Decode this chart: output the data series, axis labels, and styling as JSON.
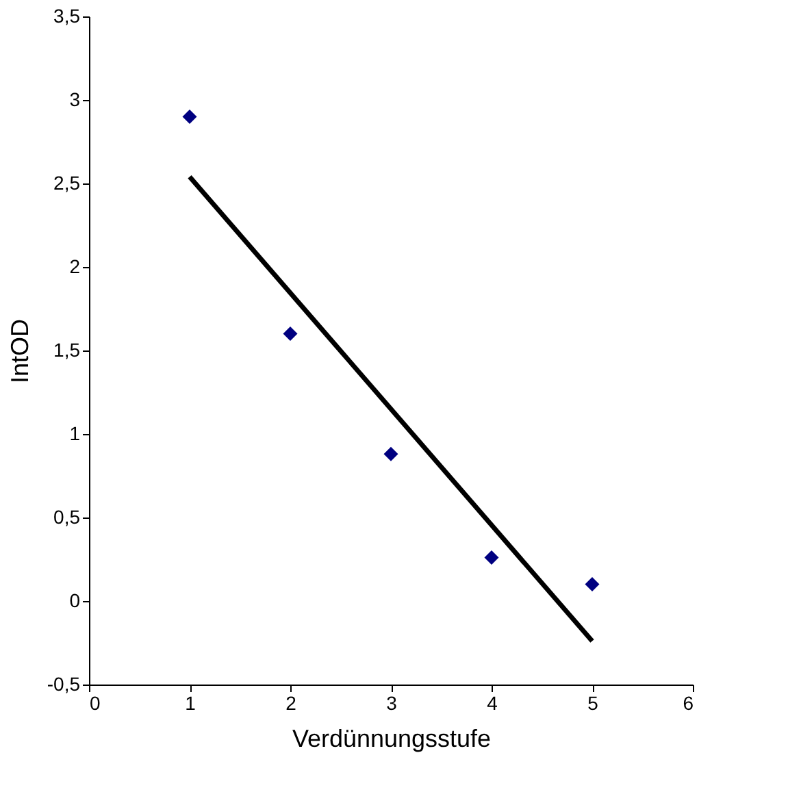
{
  "chart_data": {
    "type": "scatter",
    "xlabel": "Verdünnungsstufe",
    "ylabel": "IntOD",
    "xlim": [
      0,
      6
    ],
    "xticks": [
      0,
      1,
      2,
      3,
      4,
      5,
      6
    ],
    "ylim": [
      -0.5,
      3.5
    ],
    "yticks": [
      {
        "value": -0.5,
        "label": "-0,5"
      },
      0,
      {
        "value": 0.5,
        "label": "0,5"
      },
      1,
      {
        "value": 1.5,
        "label": "1,5"
      },
      2,
      {
        "value": 2.5,
        "label": "2,5"
      },
      3,
      {
        "value": 3.5,
        "label": "3,5"
      }
    ],
    "grid": false,
    "marker": "diamond",
    "series": [
      {
        "type": "scatter",
        "color": "#000080",
        "x": [
          1,
          2,
          3,
          4,
          5
        ],
        "values": [
          2.9,
          1.6,
          0.88,
          0.26,
          0.1
        ]
      },
      {
        "type": "line",
        "color": "#000000",
        "line_style": "solid",
        "marker": "none",
        "x": [
          1,
          5
        ],
        "values": [
          2.54,
          -0.24
        ]
      }
    ]
  }
}
